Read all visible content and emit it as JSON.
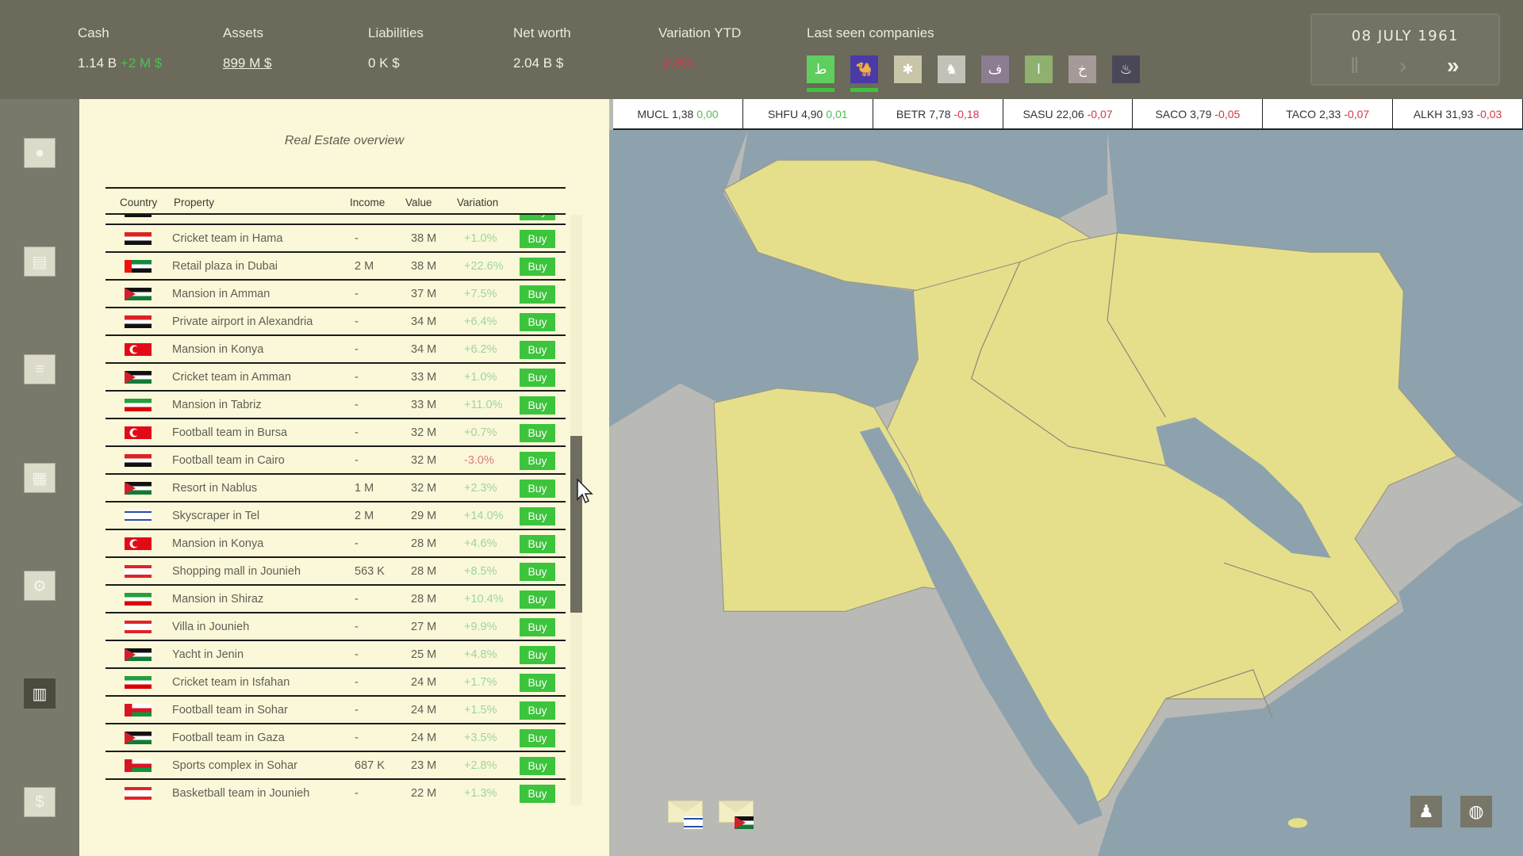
{
  "header": {
    "stats": [
      {
        "label": "Cash",
        "value": "1.14 B",
        "delta": "+2 M $"
      },
      {
        "label": "Assets",
        "value": "899 M $"
      },
      {
        "label": "Liabilities",
        "value": "0 K $"
      },
      {
        "label": "Net worth",
        "value": "2.04 B $"
      },
      {
        "label": "Variation YTD",
        "value": "-2.8%"
      }
    ],
    "last_seen_label": "Last seen companies",
    "companies": [
      {
        "glyph": "ط",
        "color": "#5fce5f",
        "selected": true
      },
      {
        "glyph": "camel",
        "color": "#4a3aa8",
        "selected": true
      },
      {
        "glyph": "✱",
        "color": "#c8c5a8"
      },
      {
        "glyph": "lion",
        "color": "#c2c1b8"
      },
      {
        "glyph": "ف",
        "color": "#8d7d93"
      },
      {
        "glyph": "ا",
        "color": "#8fb06e"
      },
      {
        "glyph": "خ",
        "color": "#a59a98"
      },
      {
        "glyph": "flame",
        "color": "#4a4757"
      }
    ],
    "date": "08 JULY 1961",
    "controls": {
      "pause": "pause-icon",
      "play": "play-icon",
      "fast": "fast-forward-icon"
    }
  },
  "sidebar": [
    "person-icon",
    "documents-icon",
    "database-icon",
    "news-icon",
    "gears-icon",
    "building-icon",
    "money-icon"
  ],
  "panel": {
    "title": "Real Estate overview",
    "columns": {
      "country": "Country",
      "property": "Property",
      "income": "Income",
      "value": "Value",
      "variation": "Variation"
    },
    "buy_label": "Buy",
    "rows": [
      {
        "flag": "syria",
        "property": "Cricket team in Hama",
        "income": "-",
        "value": "38 M",
        "variation": "+1.0%"
      },
      {
        "flag": "uae",
        "property": "Retail plaza in Dubai",
        "income": "2 M",
        "value": "38 M",
        "variation": "+22.6%"
      },
      {
        "flag": "jordan",
        "property": "Mansion in Amman",
        "income": "-",
        "value": "37 M",
        "variation": "+7.5%"
      },
      {
        "flag": "egypt",
        "property": "Private airport in Alexandria",
        "income": "-",
        "value": "34 M",
        "variation": "+6.4%"
      },
      {
        "flag": "turkey",
        "property": "Mansion in Konya",
        "income": "-",
        "value": "34 M",
        "variation": "+6.2%"
      },
      {
        "flag": "jordan",
        "property": "Cricket team in Amman",
        "income": "-",
        "value": "33 M",
        "variation": "+1.0%"
      },
      {
        "flag": "iran",
        "property": "Mansion in Tabriz",
        "income": "-",
        "value": "33 M",
        "variation": "+11.0%"
      },
      {
        "flag": "turkey",
        "property": "Football team in Bursa",
        "income": "-",
        "value": "32 M",
        "variation": "+0.7%"
      },
      {
        "flag": "egypt",
        "property": "Football team in Cairo",
        "income": "-",
        "value": "32 M",
        "variation": "-3.0%"
      },
      {
        "flag": "palestine",
        "property": "Resort in Nablus",
        "income": "1 M",
        "value": "32 M",
        "variation": "+2.3%"
      },
      {
        "flag": "israel",
        "property": "Skyscraper in Tel",
        "income": "2 M",
        "value": "29 M",
        "variation": "+14.0%"
      },
      {
        "flag": "turkey",
        "property": "Mansion in Konya",
        "income": "-",
        "value": "28 M",
        "variation": "+4.6%"
      },
      {
        "flag": "lebanon",
        "property": "Shopping mall in Jounieh",
        "income": "563 K",
        "value": "28 M",
        "variation": "+8.5%"
      },
      {
        "flag": "iran",
        "property": "Mansion in Shiraz",
        "income": "-",
        "value": "28 M",
        "variation": "+10.4%"
      },
      {
        "flag": "lebanon",
        "property": "Villa in Jounieh",
        "income": "-",
        "value": "27 M",
        "variation": "+9.9%"
      },
      {
        "flag": "palestine",
        "property": "Yacht in Jenin",
        "income": "-",
        "value": "25 M",
        "variation": "+4.8%"
      },
      {
        "flag": "iran",
        "property": "Cricket team in Isfahan",
        "income": "-",
        "value": "24 M",
        "variation": "+1.7%"
      },
      {
        "flag": "oman",
        "property": "Football team in Sohar",
        "income": "-",
        "value": "24 M",
        "variation": "+1.5%"
      },
      {
        "flag": "palestine",
        "property": "Football team in Gaza",
        "income": "-",
        "value": "24 M",
        "variation": "+3.5%"
      },
      {
        "flag": "oman",
        "property": "Sports complex in Sohar",
        "income": "687 K",
        "value": "23 M",
        "variation": "+2.8%"
      },
      {
        "flag": "lebanon",
        "property": "Basketball team in Jounieh",
        "income": "-",
        "value": "22 M",
        "variation": "+1.3%"
      }
    ]
  },
  "ticker": [
    {
      "symbol": "MUCL",
      "price": "1,38",
      "change": "0,00"
    },
    {
      "symbol": "SHFU",
      "price": "4,90",
      "change": "0,01"
    },
    {
      "symbol": "BETR",
      "price": "7,78",
      "change": "-0,18"
    },
    {
      "symbol": "SASU",
      "price": "22,06",
      "change": "-0,07"
    },
    {
      "symbol": "SACO",
      "price": "3,79",
      "change": "-0,05"
    },
    {
      "symbol": "TACO",
      "price": "2,33",
      "change": "-0,07"
    },
    {
      "symbol": "ALKH",
      "price": "31,93",
      "change": "-0,03"
    }
  ],
  "map": {
    "colors": {
      "sea": "#8ea2ad",
      "land_other": "#b9b9b6",
      "land_region": "#e5df8c"
    },
    "messages": [
      {
        "flag": "israel"
      },
      {
        "flag": "palestine"
      }
    ],
    "buttons": [
      "investor-icon",
      "globe-icon"
    ]
  }
}
